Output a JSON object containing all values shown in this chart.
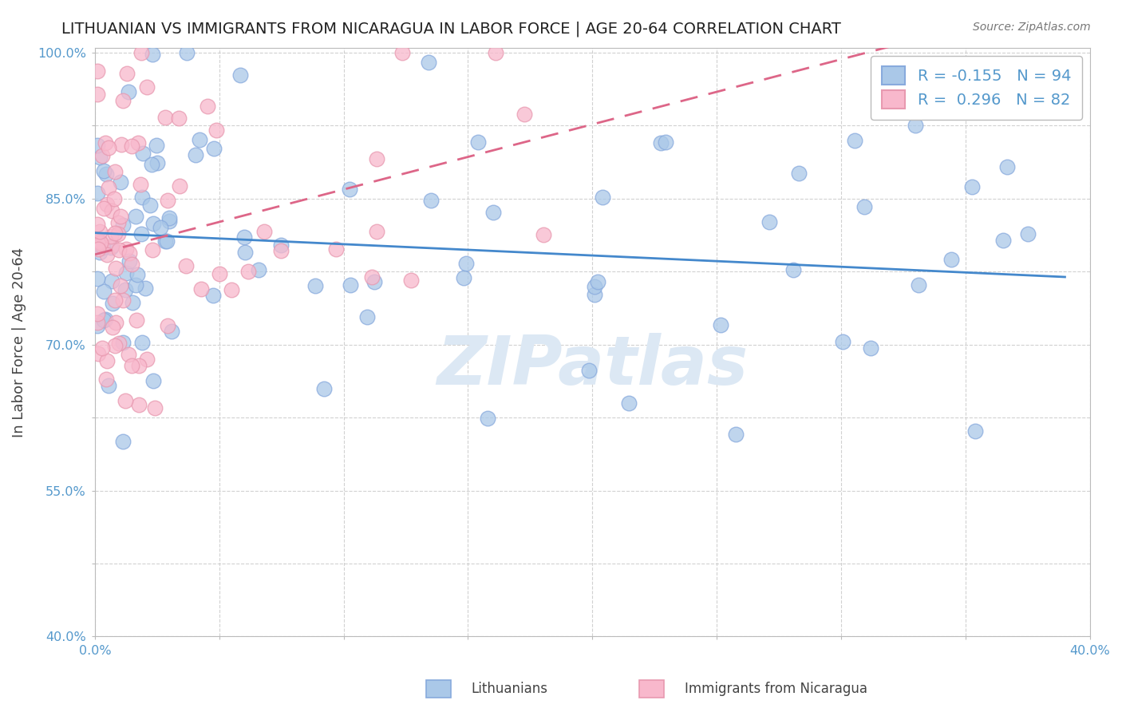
{
  "title": "LITHUANIAN VS IMMIGRANTS FROM NICARAGUA IN LABOR FORCE | AGE 20-64 CORRELATION CHART",
  "source": "Source: ZipAtlas.com",
  "ylabel": "In Labor Force | Age 20-64",
  "xmin": 0.0,
  "xmax": 0.4,
  "ymin": 0.4,
  "ymax": 1.005,
  "ytick_vals": [
    0.4,
    0.475,
    0.55,
    0.625,
    0.7,
    0.775,
    0.85,
    0.925,
    1.0
  ],
  "ytick_labels": [
    "40.0%",
    "",
    "55.0%",
    "",
    "70.0%",
    "",
    "85.0%",
    "",
    "100.0%"
  ],
  "xtick_vals": [
    0.0,
    0.05,
    0.1,
    0.15,
    0.2,
    0.25,
    0.3,
    0.35,
    0.4
  ],
  "xtick_labels": [
    "0.0%",
    "",
    "",
    "",
    "",
    "",
    "",
    "",
    "40.0%"
  ],
  "legend_r1": "-0.155",
  "legend_n1": "94",
  "legend_r2": "0.296",
  "legend_n2": "82",
  "blue_face": "#aac8e8",
  "blue_edge": "#88aadd",
  "pink_face": "#f8b8cc",
  "pink_edge": "#e899b0",
  "blue_line": "#4488cc",
  "pink_line": "#dd6688",
  "grid_color": "#cccccc",
  "tick_color": "#5599cc",
  "watermark_color": "#dce8f4",
  "title_color": "#222222",
  "source_color": "#777777",
  "label_color": "#444444"
}
